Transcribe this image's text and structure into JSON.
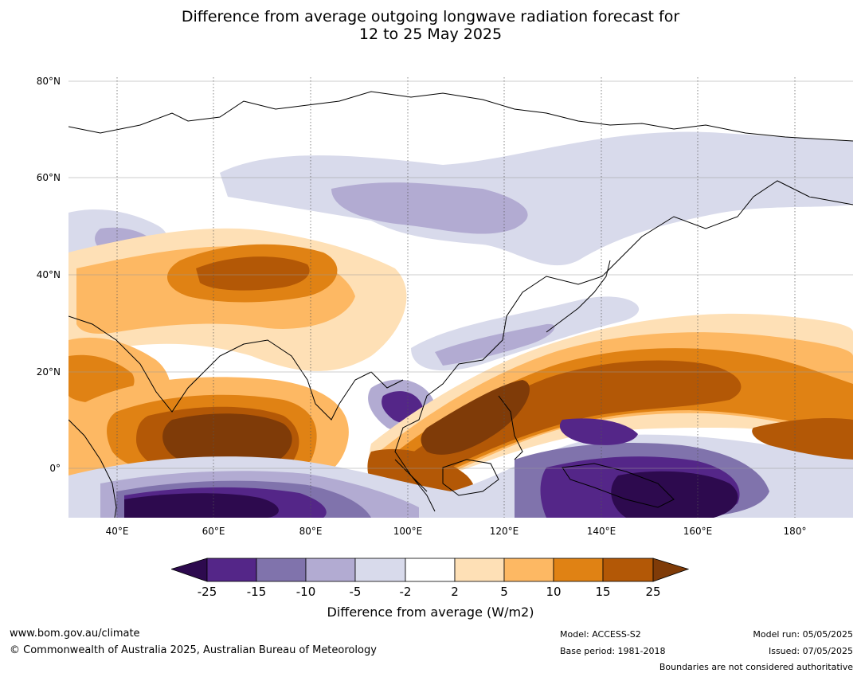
{
  "title": {
    "line1": "Difference from average outgoing longwave radiation forecast for",
    "line2": "12 to 25 May 2025"
  },
  "map": {
    "lat_labels": [
      "80°N",
      "60°N",
      "40°N",
      "20°N",
      "0°"
    ],
    "lon_labels": [
      "40°E",
      "60°E",
      "80°E",
      "100°E",
      "120°E",
      "140°E",
      "160°E",
      "180°"
    ],
    "extent": {
      "lon_min": 30,
      "lon_max": 192,
      "lat_min": -10,
      "lat_max": 81
    }
  },
  "legend": {
    "title": "Difference from average (W/m2)",
    "ticks": [
      "-25",
      "-15",
      "-10",
      "-5",
      "-2",
      "2",
      "5",
      "10",
      "15",
      "25"
    ],
    "colors": [
      "#2d0a4e",
      "#542688",
      "#8073ac",
      "#b2abd2",
      "#d8daeb",
      "#ffffff",
      "#fee0b6",
      "#fdb863",
      "#e08214",
      "#b35806",
      "#7f3b08"
    ]
  },
  "footer": {
    "website": "www.bom.gov.au/climate",
    "copyright": "© Commonwealth of Australia 2025, Australian Bureau of Meteorology",
    "model": "Model: ACCESS-S2",
    "base_period": "Base period: 1981-2018",
    "model_run": "Model run: 05/05/2025",
    "issued": "Issued: 07/05/2025",
    "disclaimer": "Boundaries are not considered authoritative"
  }
}
